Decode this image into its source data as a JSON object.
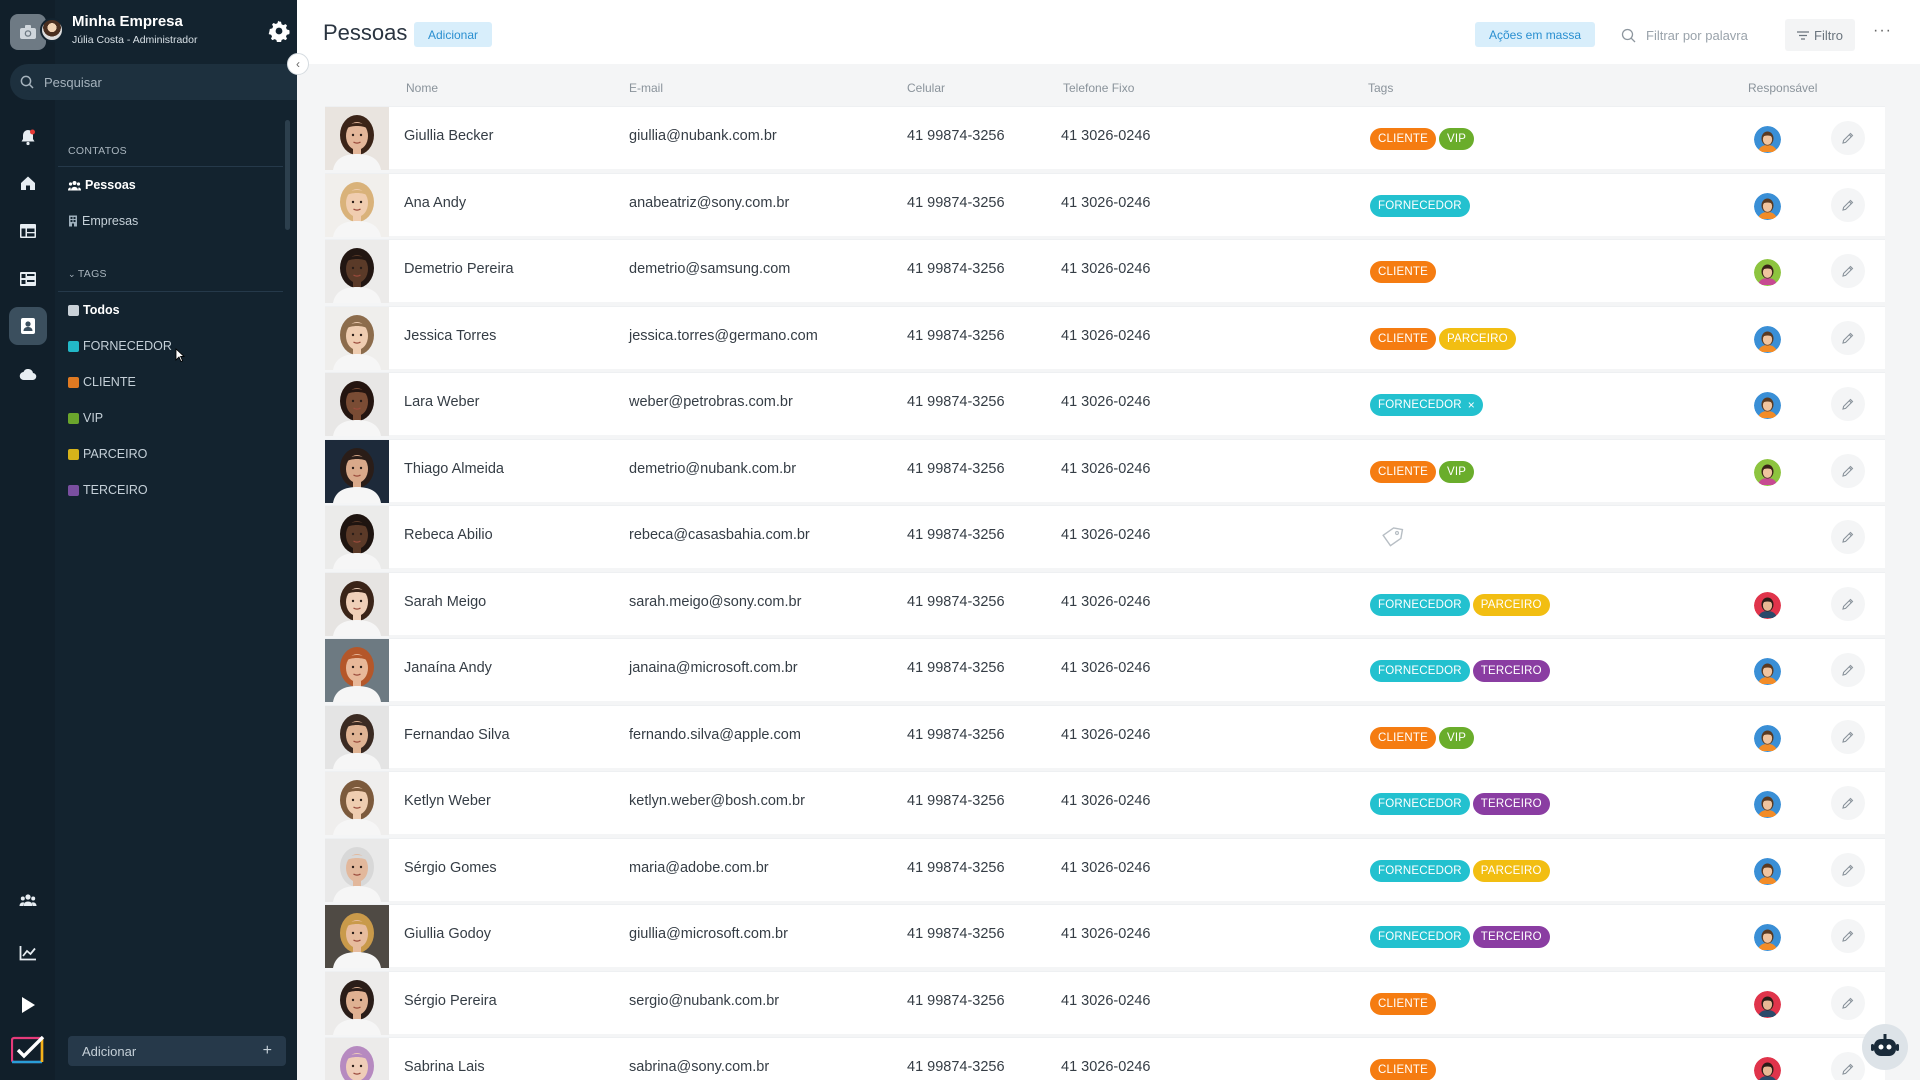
{
  "sidebar": {
    "company": "Minha Empresa",
    "user": "Júlia Costa - Administrador",
    "search_placeholder": "Pesquisar",
    "contacts_title": "CONTATOS",
    "nav": [
      {
        "label": "Pessoas"
      },
      {
        "label": "Empresas"
      }
    ],
    "tags_title": "TAGS",
    "tags": [
      {
        "label": "Todos",
        "color": "#c9d1d8"
      },
      {
        "label": "FORNECEDOR",
        "color": "#22b8c8"
      },
      {
        "label": "CLIENTE",
        "color": "#e07a22"
      },
      {
        "label": "VIP",
        "color": "#6aa52c"
      },
      {
        "label": "PARCEIRO",
        "color": "#d6b31a"
      },
      {
        "label": "TERCEIRO",
        "color": "#7a4fa0"
      }
    ],
    "add_label": "Adicionar"
  },
  "header": {
    "title": "Pessoas",
    "add_label": "Adicionar",
    "mass_actions": "Ações em massa",
    "filter_placeholder": "Filtrar por palavra",
    "filter_label": "Filtro",
    "more": "···"
  },
  "columns": {
    "name": "Nome",
    "email": "E-mail",
    "mobile": "Celular",
    "phone": "Telefone Fixo",
    "tags": "Tags",
    "owner": "Responsável"
  },
  "tag_colors": {
    "CLIENTE": "#f57c11",
    "VIP": "#6aad2b",
    "FORNECEDOR": "#23c1cf",
    "PARCEIRO": "#f2be12",
    "TERCEIRO": "#8a3da2"
  },
  "rows": [
    {
      "name": "Giullia Becker",
      "email": "giullia@nubank.com.br",
      "mobile": "41 99874-3256",
      "phone": "41 3026-0246",
      "tags": [
        "CLIENTE",
        "VIP"
      ],
      "owner": "man-blue",
      "skin": "#e4b79a",
      "hair": "#3b2418",
      "bg": "#e9e4df"
    },
    {
      "name": "Ana Andy",
      "email": "anabeatriz@sony.com.br",
      "mobile": "41 99874-3256",
      "phone": "41 3026-0246",
      "tags": [
        "FORNECEDOR"
      ],
      "owner": "man-blue",
      "skin": "#f0cdb0",
      "hair": "#d9b27a",
      "bg": "#f1efec"
    },
    {
      "name": "Demetrio Pereira",
      "email": "demetrio@samsung.com",
      "mobile": "41 99874-3256",
      "phone": "41 3026-0246",
      "tags": [
        "CLIENTE"
      ],
      "owner": "woman-green",
      "skin": "#5a3a28",
      "hair": "#221612",
      "bg": "#ecebea"
    },
    {
      "name": "Jessica Torres",
      "email": "jessica.torres@germano.com",
      "mobile": "41 99874-3256",
      "phone": "41 3026-0246",
      "tags": [
        "CLIENTE",
        "PARCEIRO"
      ],
      "owner": "man-blue",
      "skin": "#efcdb1",
      "hair": "#8c6c4c",
      "bg": "#efeeec"
    },
    {
      "name": "Lara Weber",
      "email": "weber@petrobras.com.br",
      "mobile": "41 99874-3256",
      "phone": "41 3026-0246",
      "tags": [
        "FORNECEDOR"
      ],
      "removable": true,
      "owner": "man-blue",
      "skin": "#7a4c34",
      "hair": "#241510",
      "bg": "#e8e7e6"
    },
    {
      "name": "Thiago Almeida",
      "email": "demetrio@nubank.com.br",
      "mobile": "41 99874-3256",
      "phone": "41 3026-0246",
      "tags": [
        "CLIENTE",
        "VIP"
      ],
      "owner": "woman-green",
      "skin": "#d9a98a",
      "hair": "#2a1d18",
      "bg": "#1d2a3a"
    },
    {
      "name": "Rebeca Abilio",
      "email": "rebeca@casasbahia.com.br",
      "mobile": "41 99874-3256",
      "phone": "41 3026-0246",
      "tags": [],
      "owner": "",
      "skin": "#5b3a28",
      "hair": "#1e1410",
      "bg": "#ebebea"
    },
    {
      "name": "Sarah Meigo",
      "email": "sarah.meigo@sony.com.br",
      "mobile": "41 99874-3256",
      "phone": "41 3026-0246",
      "tags": [
        "FORNECEDOR",
        "PARCEIRO"
      ],
      "owner": "man-red",
      "skin": "#efcfb8",
      "hair": "#3a2418",
      "bg": "#e6e4e2"
    },
    {
      "name": "Janaína Andy",
      "email": "janaina@microsoft.com.br",
      "mobile": "41 99874-3256",
      "phone": "41 3026-0246",
      "tags": [
        "FORNECEDOR",
        "TERCEIRO"
      ],
      "owner": "man-blue",
      "skin": "#e8b899",
      "hair": "#b4572a",
      "bg": "#6d7a82"
    },
    {
      "name": "Fernandao Silva",
      "email": "fernando.silva@apple.com",
      "mobile": "41 99874-3256",
      "phone": "41 3026-0246",
      "tags": [
        "CLIENTE",
        "VIP"
      ],
      "owner": "man-blue",
      "skin": "#e0b494",
      "hair": "#3a2a22",
      "bg": "#e4e4e4"
    },
    {
      "name": "Ketlyn Weber",
      "email": "ketlyn.weber@bosh.com.br",
      "mobile": "41 99874-3256",
      "phone": "41 3026-0246",
      "tags": [
        "FORNECEDOR",
        "TERCEIRO"
      ],
      "owner": "man-blue",
      "skin": "#efcdb0",
      "hair": "#7c5a3c",
      "bg": "#efeeed"
    },
    {
      "name": "Sérgio Gomes",
      "email": "maria@adobe.com.br",
      "mobile": "41 99874-3256",
      "phone": "41 3026-0246",
      "tags": [
        "FORNECEDOR",
        "PARCEIRO"
      ],
      "owner": "man-blue",
      "skin": "#e2b89c",
      "hair": "#d8d8d8",
      "bg": "#e9e9e9"
    },
    {
      "name": "Giullia Godoy",
      "email": "giullia@microsoft.com.br",
      "mobile": "41 99874-3256",
      "phone": "41 3026-0246",
      "tags": [
        "FORNECEDOR",
        "TERCEIRO"
      ],
      "owner": "man-blue",
      "skin": "#e7bc9e",
      "hair": "#c99a4a",
      "bg": "#4f4a44"
    },
    {
      "name": "Sérgio Pereira",
      "email": "sergio@nubank.com.br",
      "mobile": "41 99874-3256",
      "phone": "41 3026-0246",
      "tags": [
        "CLIENTE"
      ],
      "owner": "man-red",
      "skin": "#dfb192",
      "hair": "#2a1d18",
      "bg": "#ecebea"
    },
    {
      "name": "Sabrina Lais",
      "email": "sabrina@sony.com.br",
      "mobile": "41 99874-3256",
      "phone": "41 3026-0246",
      "tags": [
        "CLIENTE"
      ],
      "owner": "man-red",
      "skin": "#efcdb8",
      "hair": "#b68ac0",
      "bg": "#ecebea"
    }
  ]
}
